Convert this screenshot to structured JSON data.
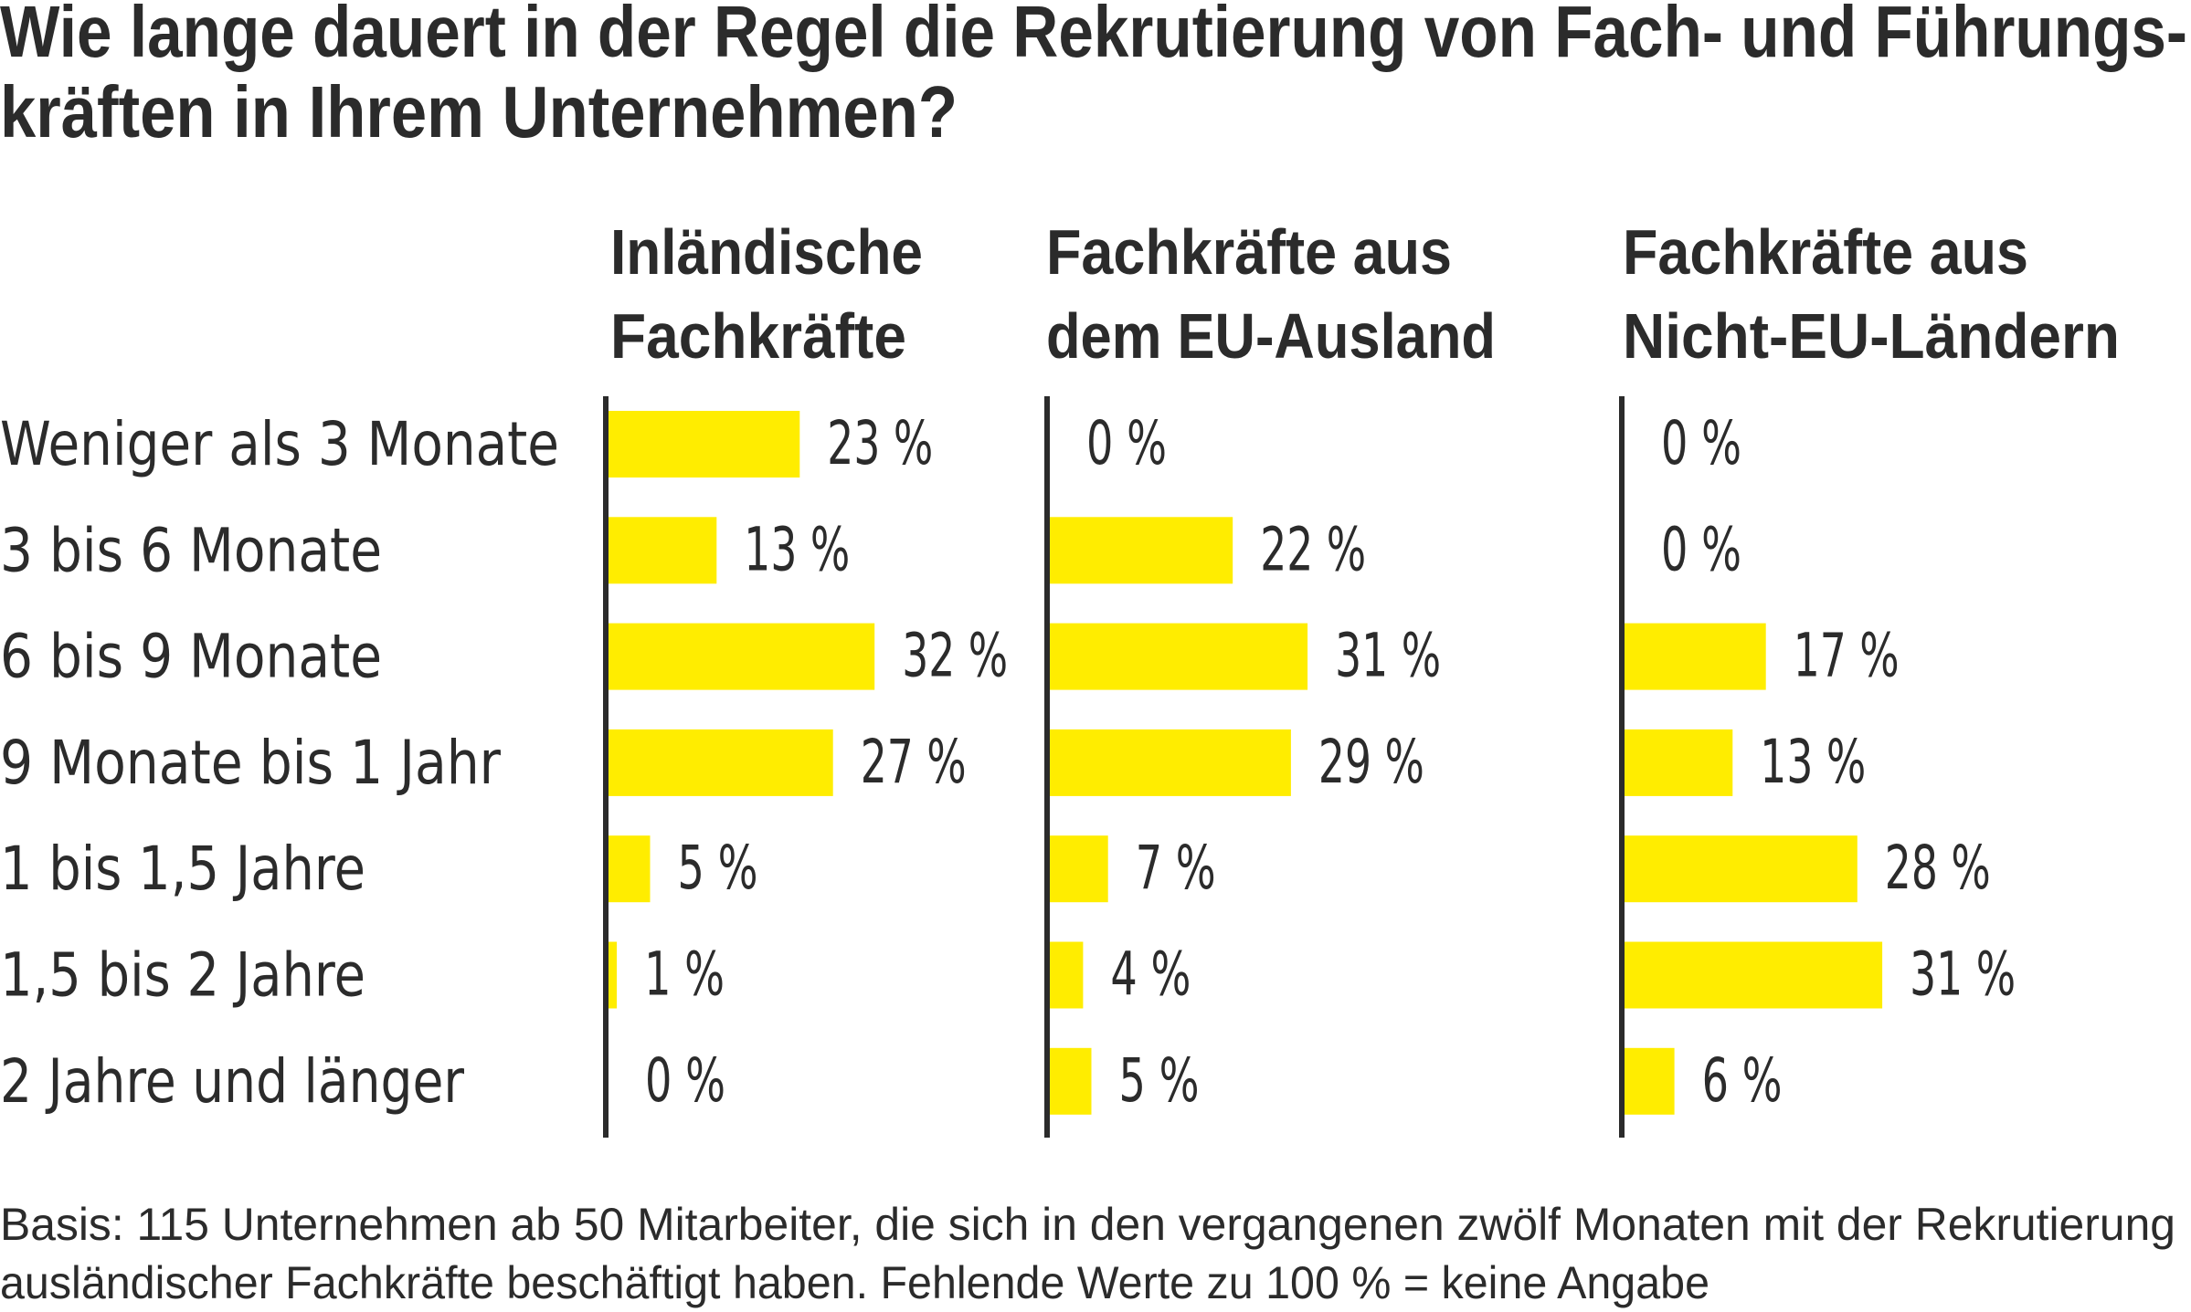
{
  "chart_data": {
    "type": "bar",
    "orientation": "horizontal",
    "title": "Wie lange dauert in der Regel die Rekrutierung von Fach- und Führungskräften in Ihrem Unternehmen?",
    "title_lines": [
      "Wie lange dauert in der Regel die Rekrutierung von Fach- und Führungs-",
      "kräften in Ihrem Unternehmen?"
    ],
    "categories": [
      "Weniger als 3 Monate",
      "3 bis 6 Monate",
      "6 bis 9 Monate",
      "9 Monate bis 1 Jahr",
      "1 bis 1,5 Jahre",
      "1,5 bis 2 Jahre",
      "2 Jahre und länger"
    ],
    "series": [
      {
        "name": "Inländische Fachkräfte",
        "header_lines": [
          "Inländische",
          "Fachkräfte"
        ],
        "values": [
          23,
          13,
          32,
          27,
          5,
          1,
          0
        ],
        "labels": [
          "23 %",
          "13 %",
          "32 %",
          "27 %",
          "5 %",
          "1 %",
          "0 %"
        ]
      },
      {
        "name": "Fachkräfte aus dem EU-Ausland",
        "header_lines": [
          "Fachkräfte aus",
          "dem EU-Ausland"
        ],
        "values": [
          0,
          22,
          31,
          29,
          7,
          4,
          5
        ],
        "labels": [
          "0 %",
          "22 %",
          "31 %",
          "29 %",
          "7 %",
          "4 %",
          "5 %"
        ]
      },
      {
        "name": "Fachkräfte aus Nicht-EU-Ländern",
        "header_lines": [
          "Fachkräfte aus",
          "Nicht-EU-Ländern"
        ],
        "values": [
          0,
          0,
          17,
          13,
          28,
          31,
          6
        ],
        "labels": [
          "0 %",
          "0 %",
          "17 %",
          "13 %",
          "28 %",
          "31 %",
          "6 %"
        ]
      }
    ],
    "unit": "%",
    "xlabel": "",
    "ylabel": "",
    "xlim": [
      0,
      35
    ],
    "grid": false,
    "legend": "none",
    "bar_color": "#FFED00",
    "text_color": "#2B2B2B",
    "footnote_lines": [
      "Basis: 115 Unternehmen ab 50 Mitarbeiter, die sich in den vergangenen zwölf Monaten mit der Rekrutierung",
      "ausländischer Fachkräfte beschäftigt haben. Fehlende Werte zu 100 % = keine Angabe"
    ]
  }
}
